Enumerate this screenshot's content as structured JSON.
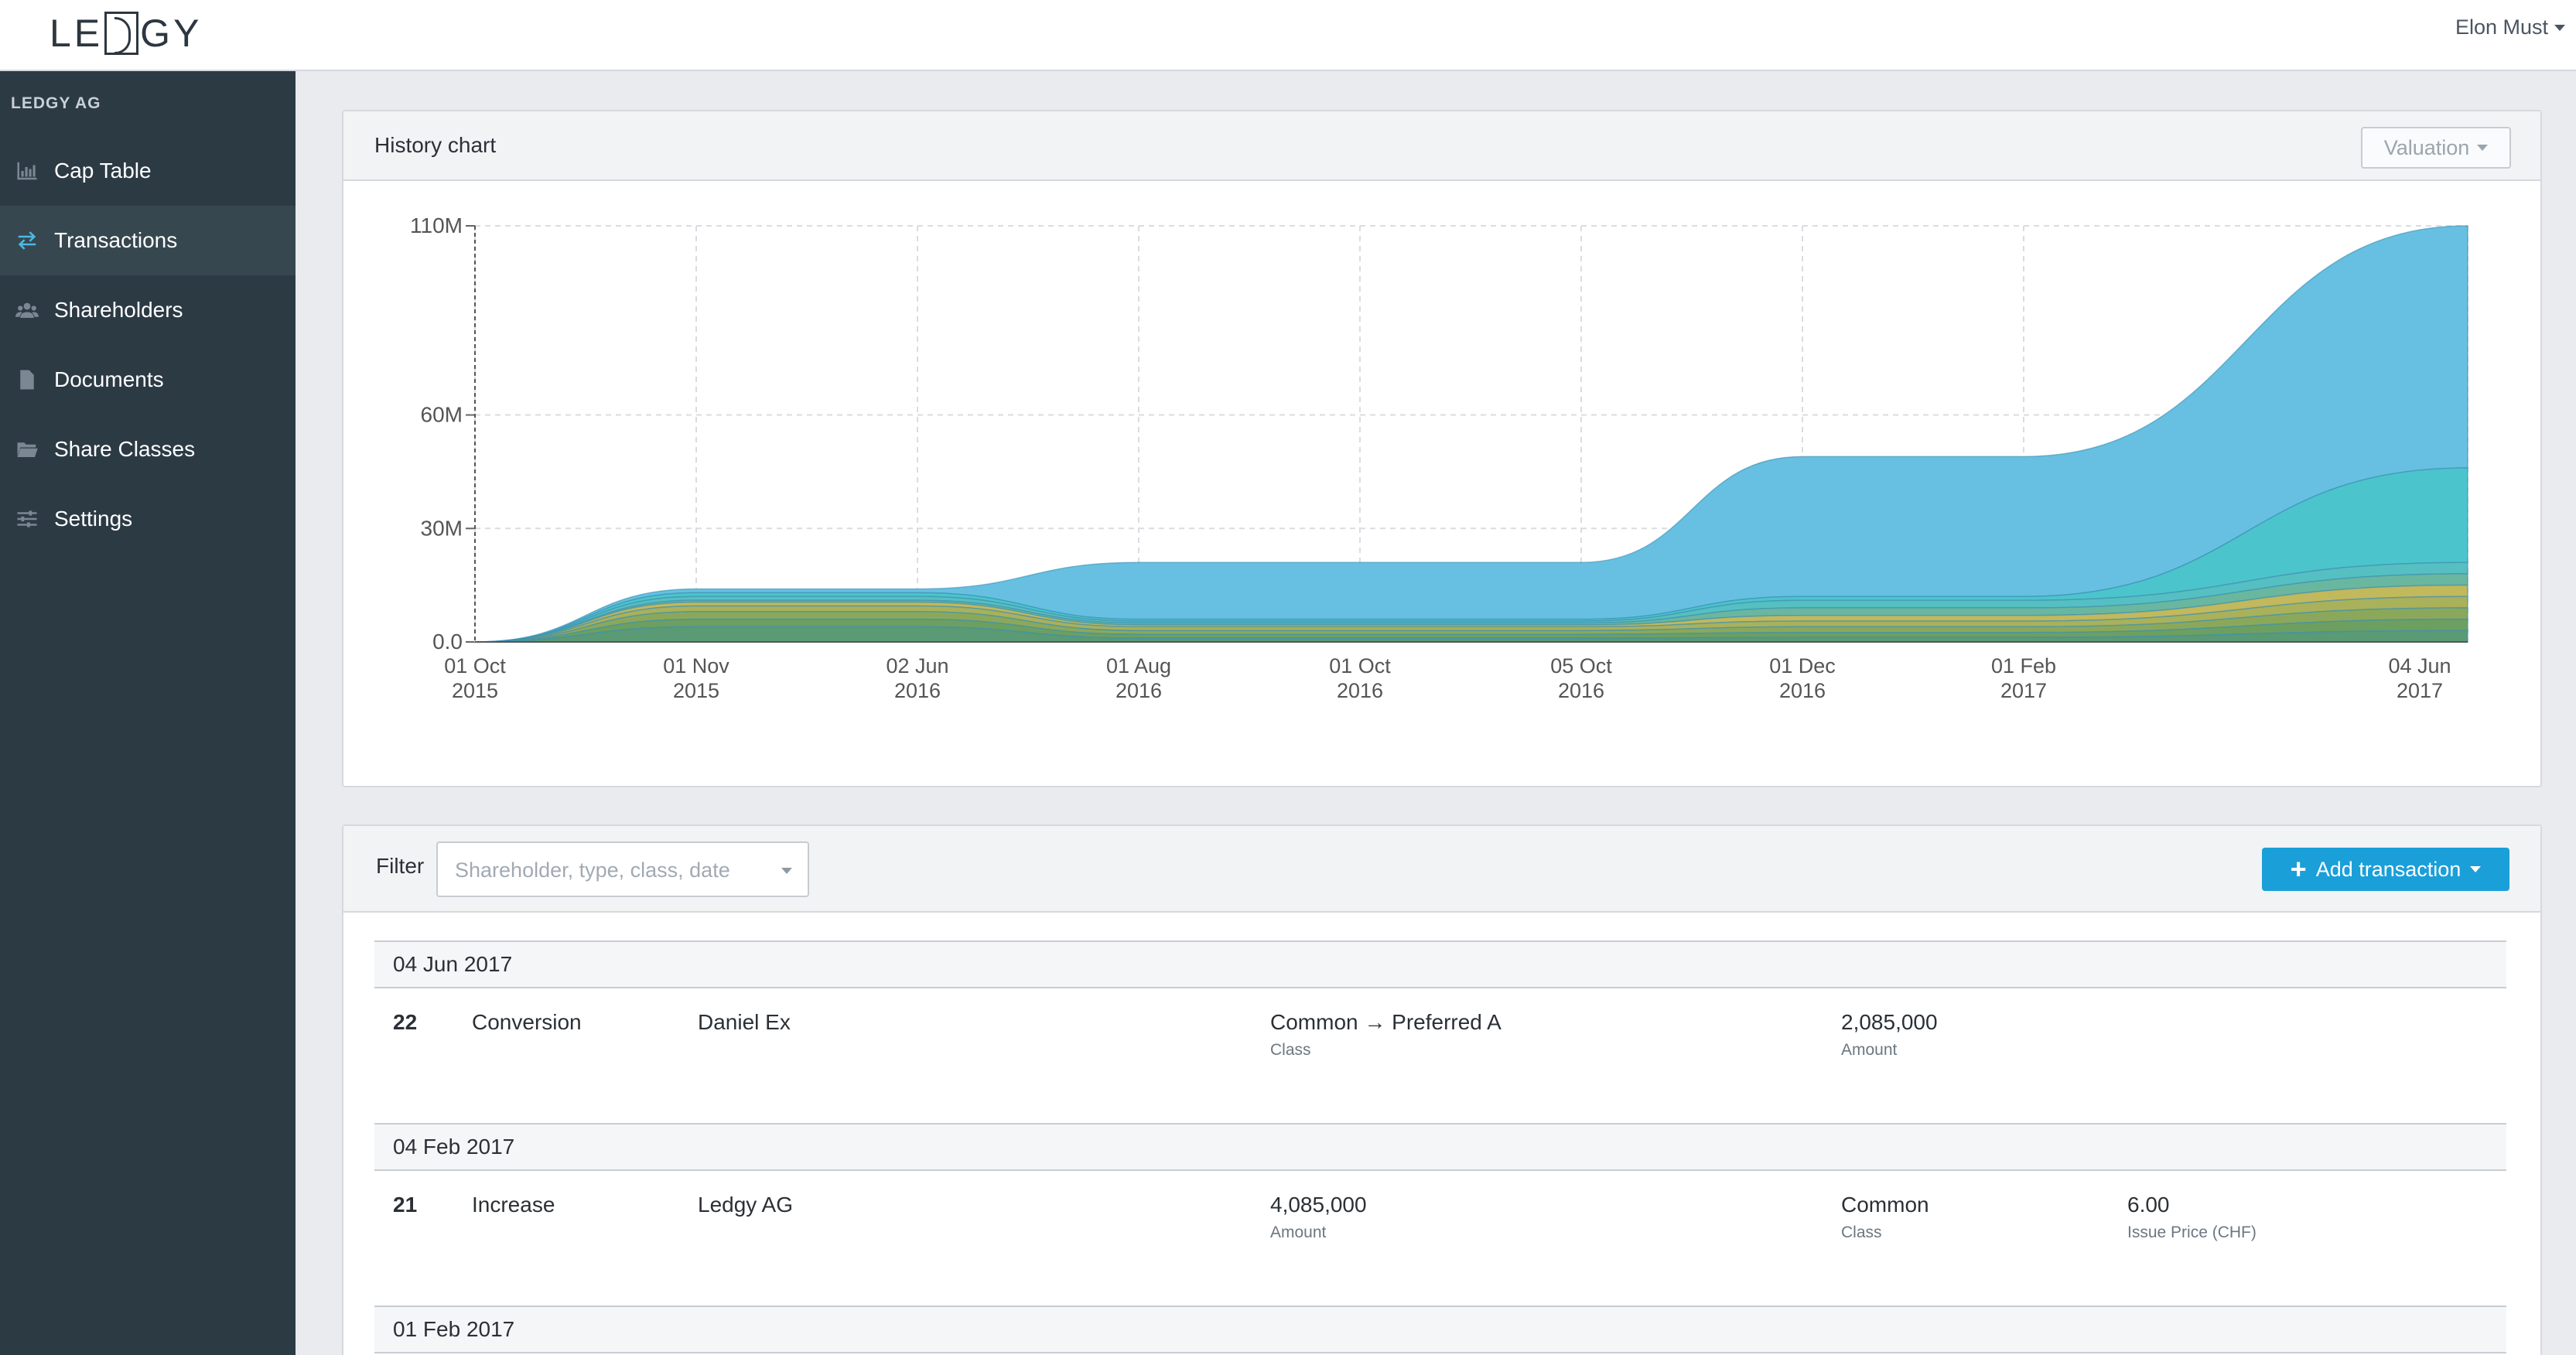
{
  "header": {
    "logo_text": "LEDGY",
    "user_name": "Elon Must"
  },
  "sidebar": {
    "org_name": "LEDGY AG",
    "items": [
      {
        "label": "Cap Table",
        "icon": "bar-chart-icon",
        "active": false
      },
      {
        "label": "Transactions",
        "icon": "arrows-exchange-icon",
        "active": true
      },
      {
        "label": "Shareholders",
        "icon": "users-icon",
        "active": false
      },
      {
        "label": "Documents",
        "icon": "document-icon",
        "active": false
      },
      {
        "label": "Share Classes",
        "icon": "folder-icon",
        "active": false
      },
      {
        "label": "Settings",
        "icon": "sliders-icon",
        "active": false
      }
    ]
  },
  "history_chart": {
    "title": "History chart",
    "dropdown_label": "Valuation"
  },
  "chart_data": {
    "type": "area",
    "title": "History chart",
    "stacked": true,
    "x": [
      "01 Oct 2015",
      "01 Nov 2015",
      "02 Jun 2016",
      "01 Aug 2016",
      "01 Oct 2016",
      "05 Oct 2016",
      "01 Dec 2016",
      "01 Feb 2017",
      "04 Jun 2017"
    ],
    "x_tick_labels": [
      [
        "01 Oct",
        "2015"
      ],
      [
        "01 Nov",
        "2015"
      ],
      [
        "02 Jun",
        "2016"
      ],
      [
        "01 Aug",
        "2016"
      ],
      [
        "01 Oct",
        "2016"
      ],
      [
        "05 Oct",
        "2016"
      ],
      [
        "01 Dec",
        "2016"
      ],
      [
        "01 Feb",
        "2017"
      ],
      [
        "04 Jun",
        "2017"
      ]
    ],
    "y_tick_labels": [
      "0.0",
      "30M",
      "60M",
      "110M"
    ],
    "y_ticks": [
      0,
      30,
      60,
      110
    ],
    "ylim": [
      0,
      110
    ],
    "grid": true,
    "total_values": [
      0,
      14,
      14,
      21,
      21,
      21,
      49,
      49,
      110
    ],
    "layer_tops": [
      {
        "color": "#5a9a74",
        "values": [
          0,
          4,
          4,
          1,
          1,
          1,
          1.2,
          1.2,
          3
        ]
      },
      {
        "color": "#6d9f60",
        "values": [
          0,
          6,
          6,
          2,
          2,
          2,
          2.5,
          2.5,
          6
        ]
      },
      {
        "color": "#8ba85a",
        "values": [
          0,
          8,
          8,
          3,
          3,
          3,
          4,
          4,
          9
        ]
      },
      {
        "color": "#a9b15b",
        "values": [
          0,
          9.5,
          9.5,
          4,
          4,
          4,
          5.5,
          5.5,
          12
        ]
      },
      {
        "color": "#c2b85c",
        "values": [
          0,
          10.5,
          10.5,
          4.5,
          4.5,
          4.5,
          7,
          7,
          15
        ]
      },
      {
        "color": "#6ab7a0",
        "values": [
          0,
          11,
          11,
          5,
          5,
          5,
          9,
          9,
          18
        ]
      },
      {
        "color": "#56bfc2",
        "values": [
          0,
          12,
          12,
          5.5,
          5.5,
          5.5,
          11,
          11,
          21
        ]
      },
      {
        "color": "#4cc4cc",
        "values": [
          0,
          13,
          13,
          6,
          6,
          6,
          12,
          12,
          46
        ]
      },
      {
        "color": "#67c0e2",
        "values": [
          0,
          14,
          14,
          21,
          21,
          21,
          49,
          49,
          110
        ]
      }
    ]
  },
  "transactions": {
    "filter_label": "Filter",
    "filter_placeholder": "Shareholder, type, class, date",
    "add_button_label": "Add transaction",
    "groups": [
      {
        "date": "04 Jun 2017",
        "rows": [
          {
            "id": "22",
            "type": "Conversion",
            "party": "Daniel Ex",
            "col3_value": "Common → Preferred A",
            "col3_label": "Class",
            "col4_value": "2,085,000",
            "col4_label": "Amount",
            "col5_value": "",
            "col5_label": ""
          }
        ]
      },
      {
        "date": "04 Feb 2017",
        "rows": [
          {
            "id": "21",
            "type": "Increase",
            "party": "Ledgy AG",
            "col3_value": "4,085,000",
            "col3_label": "Amount",
            "col4_value": "Common",
            "col4_label": "Class",
            "col5_value": "6.00",
            "col5_label": "Issue Price (CHF)"
          }
        ]
      },
      {
        "date": "01 Feb 2017",
        "rows": []
      }
    ]
  }
}
